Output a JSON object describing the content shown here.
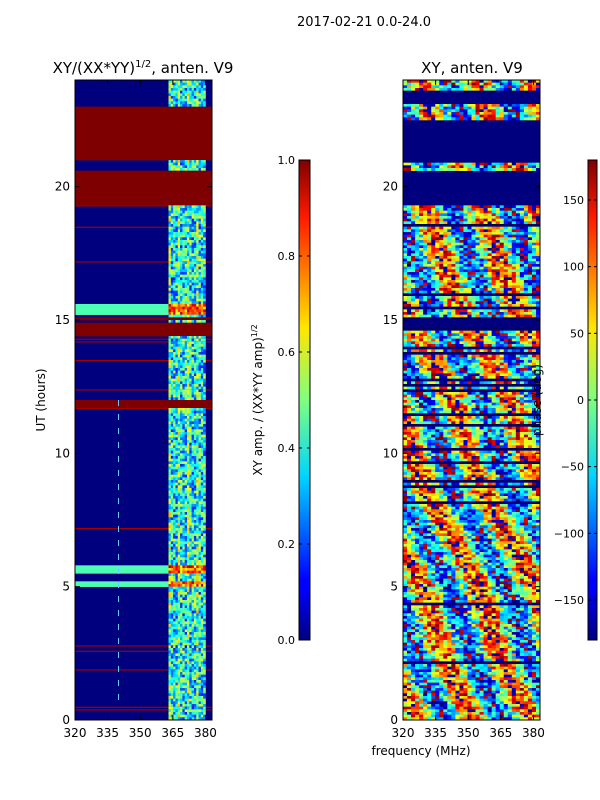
{
  "figure": {
    "suptitle": "2017-02-21 0.0-24.0",
    "shared_xlabel": "frequency (MHz)"
  },
  "chart_data": [
    {
      "type": "heatmap",
      "id": "amp",
      "title_main": "XY/(XX*YY)",
      "title_exp": "1/2",
      "title_tail": ", anten. V9",
      "xlabel": "frequency (MHz)",
      "ylabel": "UT (hours)",
      "xlim": [
        320,
        383
      ],
      "ylim": [
        0,
        24
      ],
      "xticks": [
        320,
        335,
        350,
        365,
        380
      ],
      "yticks": [
        0,
        5,
        10,
        15,
        20
      ],
      "colorbar": {
        "label": "XY amp. / (XX*YY amp)",
        "label_exp": "1/2",
        "range": [
          0.0,
          1.0
        ],
        "ticks": [
          "0.0",
          "0.2",
          "0.4",
          "0.6",
          "0.8",
          "1.0"
        ],
        "tick_values": [
          0.0,
          0.2,
          0.4,
          0.6,
          0.8,
          1.0
        ],
        "colormap": "jet"
      },
      "saturated_bands_hours": [
        [
          22.45,
          23.0
        ],
        [
          21.0,
          22.4
        ],
        [
          19.3,
          20.6
        ],
        [
          15.0,
          15.1
        ],
        [
          14.4,
          14.9
        ],
        [
          11.75,
          11.95
        ]
      ],
      "bright_bands_hours": [
        [
          5.5,
          5.8
        ],
        [
          4.95,
          5.2
        ],
        [
          15.2,
          15.6
        ]
      ],
      "bright_channel_mhz": [
        363,
        380
      ]
    },
    {
      "type": "heatmap",
      "id": "phase",
      "title_main": "XY, anten. V9",
      "xlabel": "frequency (MHz)",
      "ylabel": "",
      "xlim": [
        320,
        383
      ],
      "ylim": [
        0,
        24
      ],
      "xticks": [
        320,
        335,
        350,
        365,
        380
      ],
      "yticks": [
        0,
        5,
        10,
        15,
        20
      ],
      "colorbar": {
        "label": "phase (deg)",
        "range": [
          -180,
          180
        ],
        "ticks": [
          "−150",
          "−100",
          "−50",
          "0",
          "50",
          "100",
          "150"
        ],
        "tick_values": [
          -150,
          -100,
          -50,
          0,
          50,
          100,
          150
        ],
        "colormap": "jet"
      },
      "blank_bands_hours": [
        [
          23.1,
          23.5
        ],
        [
          20.9,
          22.5
        ],
        [
          19.3,
          20.6
        ],
        [
          14.7,
          15.0
        ]
      ]
    }
  ]
}
